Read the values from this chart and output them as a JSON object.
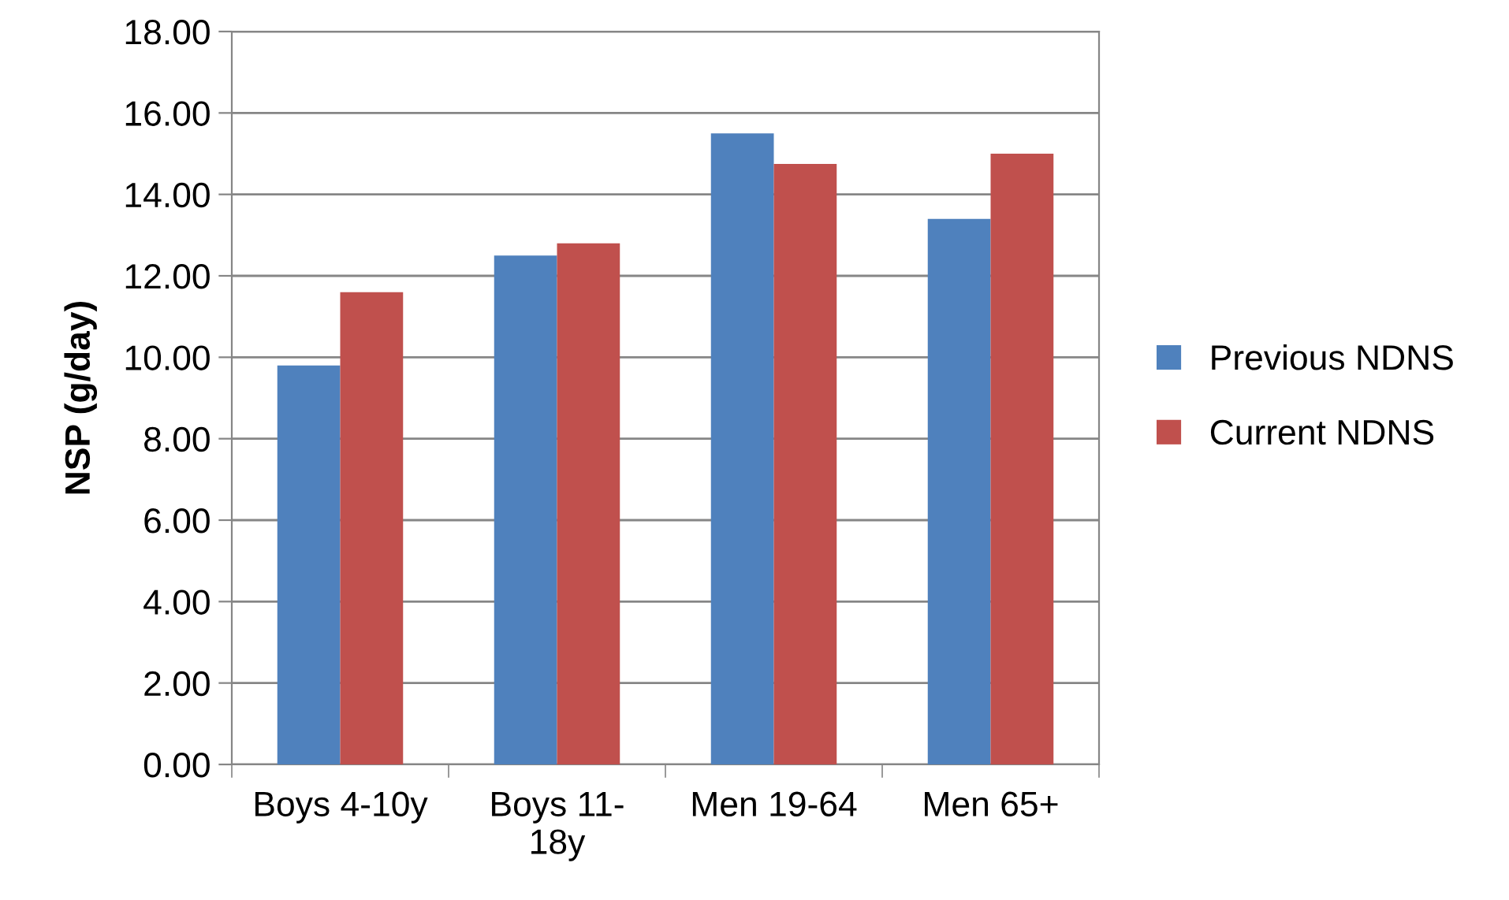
{
  "chart_data": {
    "type": "bar",
    "ylabel": "NSP (g/day)",
    "categories": [
      "Boys 4-10y",
      "Boys 11-18y",
      "Men 19-64",
      "Men 65+"
    ],
    "series": [
      {
        "name": "Previous NDNS",
        "color": "#4f81bd",
        "values": [
          9.8,
          12.5,
          15.5,
          13.4
        ]
      },
      {
        "name": "Current NDNS",
        "color": "#c0504d",
        "values": [
          11.6,
          12.8,
          14.75,
          15.0
        ]
      }
    ],
    "ylim": [
      0,
      18
    ],
    "yticks": [
      {
        "value": 0,
        "label": "0.00"
      },
      {
        "value": 2,
        "label": "2.00"
      },
      {
        "value": 4,
        "label": "4.00"
      },
      {
        "value": 6,
        "label": "6.00"
      },
      {
        "value": 8,
        "label": "8.00"
      },
      {
        "value": 10,
        "label": "10.00"
      },
      {
        "value": 12,
        "label": "12.00"
      },
      {
        "value": 14,
        "label": "14.00"
      },
      {
        "value": 16,
        "label": "16.00"
      },
      {
        "value": 18,
        "label": "18.00"
      }
    ],
    "grid": "y",
    "legend": "right"
  }
}
